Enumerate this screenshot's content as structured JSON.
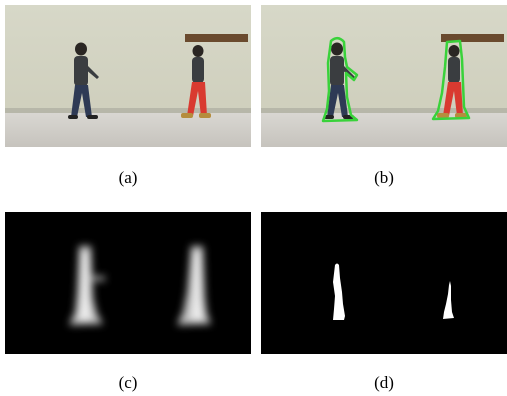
{
  "figure": {
    "panels": [
      {
        "id": "a",
        "label": "(a)",
        "content": "original-frame"
      },
      {
        "id": "b",
        "label": "(b)",
        "content": "segmentation-contours"
      },
      {
        "id": "c",
        "label": "(c)",
        "content": "probability-map"
      },
      {
        "id": "d",
        "label": "(d)",
        "content": "binary-mask"
      }
    ],
    "contour_color": "#39d23a",
    "wall_color": "#cfcfbf",
    "floor_color": "#cdcbc6",
    "board_color": "#6a4a2e"
  }
}
